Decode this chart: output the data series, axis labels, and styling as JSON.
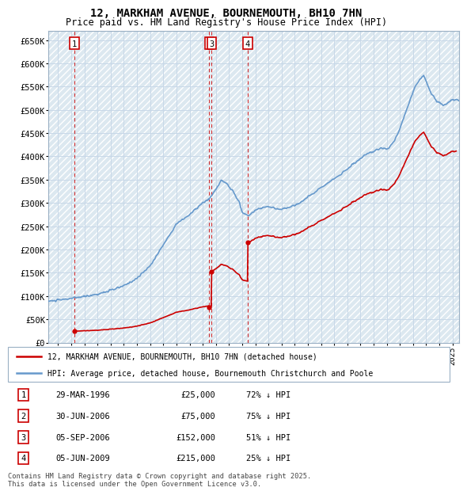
{
  "title1": "12, MARKHAM AVENUE, BOURNEMOUTH, BH10 7HN",
  "title2": "Price paid vs. HM Land Registry's House Price Index (HPI)",
  "ylim": [
    0,
    670000
  ],
  "yticks": [
    0,
    50000,
    100000,
    150000,
    200000,
    250000,
    300000,
    350000,
    400000,
    450000,
    500000,
    550000,
    600000,
    650000
  ],
  "ytick_labels": [
    "£0",
    "£50K",
    "£100K",
    "£150K",
    "£200K",
    "£250K",
    "£300K",
    "£350K",
    "£400K",
    "£450K",
    "£500K",
    "£550K",
    "£600K",
    "£650K"
  ],
  "xlim_start": 1994.25,
  "xlim_end": 2025.5,
  "hpi_color": "#6699cc",
  "price_color": "#cc0000",
  "background_color": "#ffffff",
  "grid_color": "#c8d8e8",
  "hatch_color": "#dce8f0",
  "transactions": [
    {
      "num": 1,
      "date_str": "29-MAR-1996",
      "year": 1996.24,
      "price": 25000,
      "label": "72% ↓ HPI"
    },
    {
      "num": 2,
      "date_str": "30-JUN-2006",
      "year": 2006.49,
      "price": 75000,
      "label": "75% ↓ HPI"
    },
    {
      "num": 3,
      "date_str": "05-SEP-2006",
      "year": 2006.67,
      "price": 152000,
      "label": "51% ↓ HPI"
    },
    {
      "num": 4,
      "date_str": "05-JUN-2009",
      "year": 2009.42,
      "price": 215000,
      "label": "25% ↓ HPI"
    }
  ],
  "legend1": "12, MARKHAM AVENUE, BOURNEMOUTH, BH10 7HN (detached house)",
  "legend2": "HPI: Average price, detached house, Bournemouth Christchurch and Poole",
  "footnote": "Contains HM Land Registry data © Crown copyright and database right 2025.\nThis data is licensed under the Open Government Licence v3.0."
}
